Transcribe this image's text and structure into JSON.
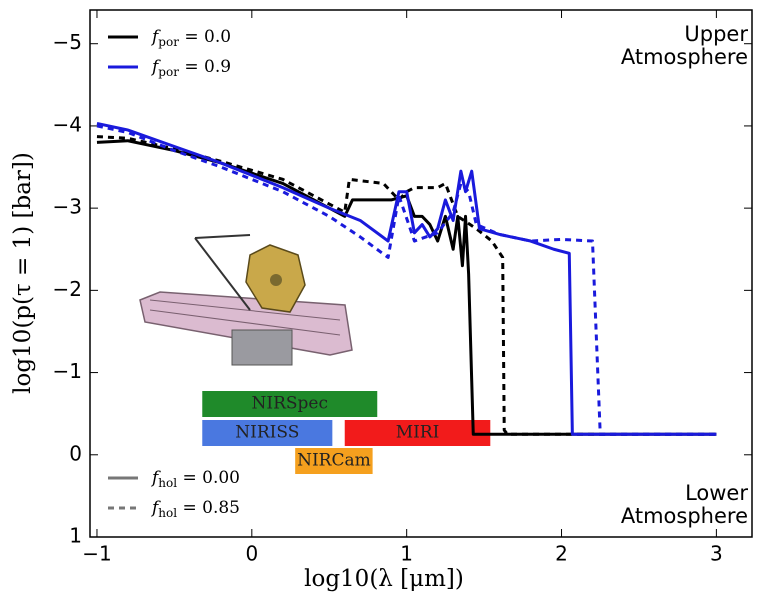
{
  "chart_data": {
    "type": "line",
    "xlabel": "log10(λ [μm])",
    "ylabel": "log10(p(τ = 1) [bar])",
    "xlim": [
      -1.045,
      3.23
    ],
    "ylim": [
      1,
      -5.41
    ],
    "xticks": [
      {
        "value": -1,
        "label": "−1"
      },
      0,
      1,
      2,
      3
    ],
    "yticks": [
      {
        "value": -5,
        "label": "−5"
      },
      {
        "value": -4,
        "label": "−4"
      },
      {
        "value": -3,
        "label": "−3"
      },
      {
        "value": -2,
        "label": "−2"
      },
      {
        "value": -1,
        "label": "−1"
      },
      0,
      1
    ],
    "annotations": [
      "Upper",
      "Atmosphere",
      "Lower",
      "Atmosphere"
    ],
    "legend_color": [
      {
        "symbol": "f",
        "subscript": "por",
        "text": " = 0.0",
        "color": "#000000"
      },
      {
        "symbol": "f",
        "subscript": "por",
        "text": " = 0.9",
        "color": "#1a1adc"
      }
    ],
    "legend_style": [
      {
        "symbol": "f",
        "subscript": "hol",
        "text": " = 0.00",
        "dashed": false
      },
      {
        "symbol": "f",
        "subscript": "hol",
        "text": " = 0.85",
        "dashed": true
      }
    ],
    "instruments": [
      {
        "name": "NIRSpec",
        "range": [
          -0.32,
          0.81
        ],
        "color": "#1f8a2a"
      },
      {
        "name": "NIRISS",
        "range": [
          -0.32,
          0.52
        ],
        "color": "#4a78e0"
      },
      {
        "name": "MIRI",
        "range": [
          0.6,
          1.54
        ],
        "color": "#f21b1b"
      },
      {
        "name": "NIRCam",
        "range": [
          0.28,
          0.78
        ],
        "color": "#f5a01e"
      }
    ],
    "series": [
      {
        "color": "#000000",
        "dashed": false,
        "x": [
          -1,
          -0.8,
          -0.5,
          -0.2,
          0.2,
          0.6,
          0.65,
          0.9,
          1.0,
          1.05,
          1.1,
          1.15,
          1.2,
          1.25,
          1.3,
          1.33,
          1.36,
          1.38,
          1.4,
          1.43,
          3
        ],
        "values": [
          -3.8,
          -3.82,
          -3.7,
          -3.55,
          -3.3,
          -2.9,
          -3.1,
          -3.1,
          -3.15,
          -2.9,
          -2.9,
          -2.8,
          -2.6,
          -2.9,
          -2.5,
          -2.9,
          -2.3,
          -2.9,
          -2.2,
          -0.25,
          -0.25
        ]
      },
      {
        "color": "#000000",
        "dashed": true,
        "x": [
          -1,
          -0.8,
          -0.5,
          -0.2,
          0.2,
          0.6,
          0.63,
          0.85,
          0.95,
          1.0,
          1.05,
          1.2,
          1.25,
          1.33,
          1.45,
          1.55,
          1.62,
          1.63,
          1.65,
          3
        ],
        "values": [
          -3.87,
          -3.85,
          -3.72,
          -3.57,
          -3.35,
          -2.95,
          -3.35,
          -3.3,
          -3.1,
          -3.2,
          -3.25,
          -3.25,
          -3.3,
          -2.9,
          -2.75,
          -2.6,
          -2.4,
          -0.3,
          -0.25,
          -0.25
        ]
      },
      {
        "color": "#1a1adc",
        "dashed": false,
        "x": [
          -1,
          -0.8,
          -0.5,
          -0.2,
          0.2,
          0.5,
          0.7,
          0.88,
          0.95,
          1.0,
          1.05,
          1.1,
          1.15,
          1.2,
          1.25,
          1.3,
          1.35,
          1.38,
          1.42,
          1.47,
          1.6,
          1.8,
          1.95,
          2.05,
          2.07,
          3
        ],
        "values": [
          -4.03,
          -3.95,
          -3.75,
          -3.55,
          -3.25,
          -3.0,
          -2.85,
          -2.6,
          -3.2,
          -3.2,
          -2.7,
          -2.8,
          -2.65,
          -2.75,
          -3.1,
          -2.85,
          -3.45,
          -3.2,
          -3.45,
          -2.75,
          -2.68,
          -2.6,
          -2.5,
          -2.45,
          -0.25,
          -0.25
        ]
      },
      {
        "color": "#1a1adc",
        "dashed": true,
        "x": [
          -1,
          -0.8,
          -0.5,
          -0.2,
          0.2,
          0.5,
          0.7,
          0.88,
          0.95,
          1.05,
          1.2,
          1.3,
          1.35,
          1.4,
          1.45,
          1.6,
          1.8,
          2.0,
          2.2,
          2.25,
          3
        ],
        "values": [
          -4.0,
          -3.92,
          -3.7,
          -3.5,
          -3.2,
          -2.9,
          -2.65,
          -2.4,
          -3.15,
          -2.6,
          -2.7,
          -2.95,
          -3.3,
          -3.2,
          -2.8,
          -2.68,
          -2.6,
          -2.62,
          -2.6,
          -0.25,
          -0.25
        ]
      }
    ]
  }
}
